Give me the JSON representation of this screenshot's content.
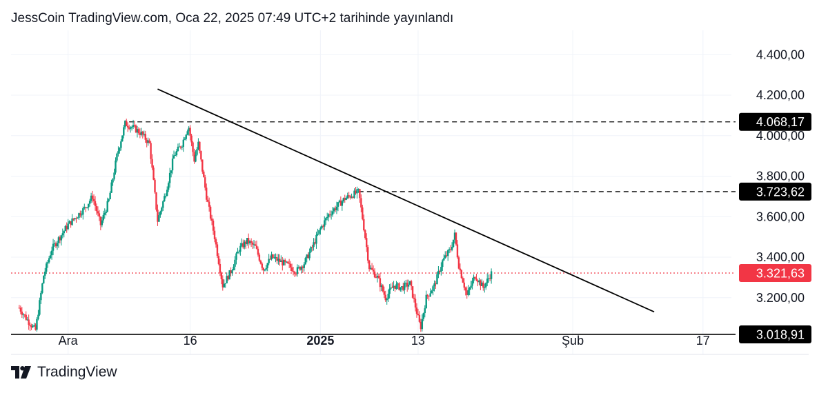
{
  "header": {
    "title": "JessCoin TradingView.com, Oca 22, 2025 07:49 UTC+2 tarihinde yayınlandı"
  },
  "footer": {
    "brand": "TradingView",
    "logo_icon": "tradingview-logo-icon"
  },
  "colors": {
    "up": "#089981",
    "down": "#f23645",
    "current_price_line": "#f23645",
    "level_line": "#000000",
    "badge_dark": "#000000",
    "badge_current": "#f23645"
  },
  "chart_data": {
    "type": "candlestick",
    "y_axis": {
      "ticks": [
        {
          "value": 4400,
          "label": "4.400,00"
        },
        {
          "value": 4200,
          "label": "4.200,00"
        },
        {
          "value": 4000,
          "label": "4.000,00"
        },
        {
          "value": 3800,
          "label": "3.800,00"
        },
        {
          "value": 3600,
          "label": "3.600,00"
        },
        {
          "value": 3400,
          "label": "3.400,00"
        },
        {
          "value": 3200,
          "label": "3.200,00"
        }
      ],
      "range": [
        2920,
        4520
      ]
    },
    "x_axis": {
      "range_days": [
        -5.5,
        53.5
      ],
      "ticks": [
        {
          "day": 1,
          "label": "Ara",
          "bold": false
        },
        {
          "day": 16,
          "label": "16",
          "bold": false
        },
        {
          "day": 32,
          "label": "2025",
          "bold": true
        },
        {
          "day": 44,
          "label": "13",
          "bold": false
        },
        {
          "day": 63,
          "label": "Şub",
          "bold": false
        },
        {
          "day": 79,
          "label": "17",
          "bold": false
        }
      ]
    },
    "price_levels": [
      {
        "value": 4068.17,
        "label": "4.068,17",
        "style": "dashed",
        "from_day": 8.5
      },
      {
        "value": 3723.62,
        "label": "3.723,62",
        "style": "dashed",
        "from_day": 36.7
      },
      {
        "value": 3321.63,
        "label": "3.321,63",
        "style": "dotted",
        "current": true
      },
      {
        "value": 3018.91,
        "label": "3.018,91",
        "style": "solid"
      }
    ],
    "trendline": {
      "start_day": 12,
      "start_value": 4230,
      "end_day": 73,
      "end_value": 3130
    },
    "anchors": [
      [
        -5.0,
        3150
      ],
      [
        -4.0,
        3090
      ],
      [
        -3.0,
        3040
      ],
      [
        -2.0,
        3310
      ],
      [
        -1.0,
        3440
      ],
      [
        0.0,
        3500
      ],
      [
        1.0,
        3560
      ],
      [
        2.0,
        3600
      ],
      [
        3.0,
        3640
      ],
      [
        4.0,
        3700
      ],
      [
        5.0,
        3560
      ],
      [
        6.0,
        3680
      ],
      [
        7.0,
        3900
      ],
      [
        8.0,
        4060
      ],
      [
        9.0,
        4040
      ],
      [
        10.0,
        4010
      ],
      [
        11.0,
        3960
      ],
      [
        12.0,
        3580
      ],
      [
        13.0,
        3720
      ],
      [
        14.0,
        3900
      ],
      [
        15.0,
        3960
      ],
      [
        15.8,
        4050
      ],
      [
        16.5,
        3880
      ],
      [
        17.0,
        3960
      ],
      [
        18.0,
        3700
      ],
      [
        19.0,
        3500
      ],
      [
        20.0,
        3260
      ],
      [
        21.0,
        3330
      ],
      [
        22.0,
        3440
      ],
      [
        23.0,
        3480
      ],
      [
        24.0,
        3450
      ],
      [
        25.0,
        3340
      ],
      [
        26.0,
        3400
      ],
      [
        27.0,
        3380
      ],
      [
        28.0,
        3360
      ],
      [
        29.0,
        3330
      ],
      [
        30.0,
        3370
      ],
      [
        31.0,
        3450
      ],
      [
        32.0,
        3540
      ],
      [
        33.0,
        3610
      ],
      [
        34.0,
        3650
      ],
      [
        35.0,
        3690
      ],
      [
        36.7,
        3723
      ],
      [
        37.5,
        3500
      ],
      [
        38.0,
        3350
      ],
      [
        39.0,
        3300
      ],
      [
        40.0,
        3200
      ],
      [
        41.0,
        3260
      ],
      [
        42.0,
        3250
      ],
      [
        43.0,
        3270
      ],
      [
        44.0,
        3100
      ],
      [
        44.3,
        3050
      ],
      [
        45.0,
        3200
      ],
      [
        46.0,
        3260
      ],
      [
        47.0,
        3380
      ],
      [
        48.0,
        3440
      ],
      [
        48.5,
        3510
      ],
      [
        49.0,
        3360
      ],
      [
        50.0,
        3210
      ],
      [
        51.0,
        3310
      ],
      [
        52.0,
        3250
      ],
      [
        53.0,
        3320
      ]
    ]
  }
}
